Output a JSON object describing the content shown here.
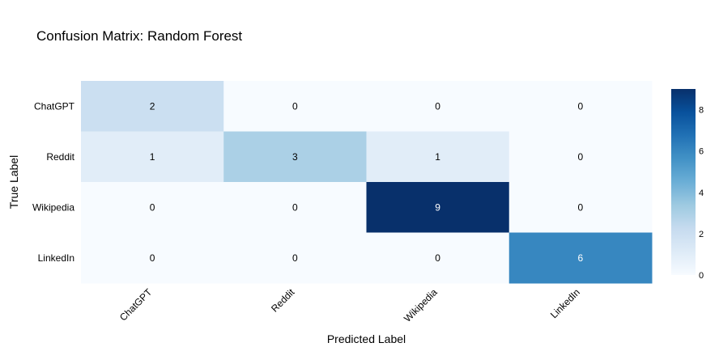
{
  "chart_data": {
    "type": "heatmap",
    "title": "Confusion Matrix: Random Forest",
    "xlabel": "Predicted Label",
    "ylabel": "True Label",
    "x_categories": [
      "ChatGPT",
      "Reddit",
      "Wikipedia",
      "LinkedIn"
    ],
    "y_categories": [
      "ChatGPT",
      "Reddit",
      "Wikipedia",
      "LinkedIn"
    ],
    "values": [
      [
        2,
        0,
        0,
        0
      ],
      [
        1,
        3,
        1,
        0
      ],
      [
        0,
        0,
        9,
        0
      ],
      [
        0,
        0,
        0,
        6
      ]
    ],
    "colorscale": "Blues",
    "colorbar_range": [
      0,
      9
    ],
    "colorbar_ticks": [
      0,
      2,
      4,
      6,
      8
    ],
    "colors": {
      "low": "#f7fbff",
      "high": "#08306b"
    }
  }
}
